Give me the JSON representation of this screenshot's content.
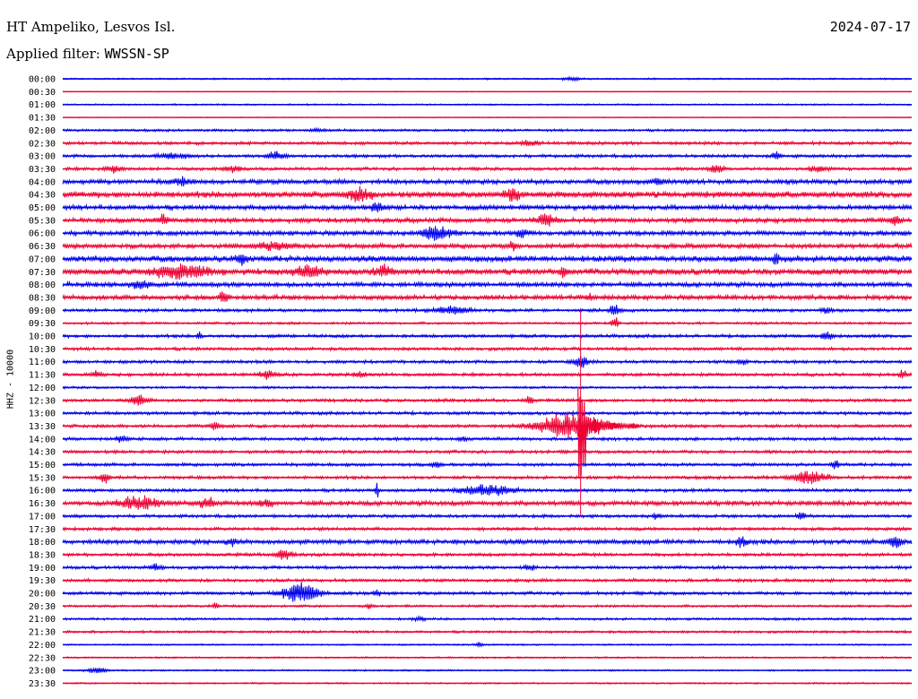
{
  "header": {
    "station": "HT Ampeliko, Lesvos Isl.",
    "date": "2024-07-17",
    "filter_label": "Applied filter:",
    "filter_value": "WWSSN-SP"
  },
  "chart_data": {
    "type": "line",
    "title": "HT Ampeliko, Lesvos Isl.",
    "ylabel": "HHZ - 10000",
    "row_labels": [
      "00:00",
      "00:30",
      "01:00",
      "01:30",
      "02:00",
      "02:30",
      "03:00",
      "03:30",
      "04:00",
      "04:30",
      "05:00",
      "05:30",
      "06:00",
      "06:30",
      "07:00",
      "07:30",
      "08:00",
      "08:30",
      "09:00",
      "09:30",
      "10:00",
      "10:30",
      "11:00",
      "11:30",
      "12:00",
      "12:30",
      "13:00",
      "13:30",
      "14:00",
      "14:30",
      "15:00",
      "15:30",
      "16:00",
      "16:30",
      "17:00",
      "17:30",
      "18:00",
      "18:30",
      "19:00",
      "19:30",
      "20:00",
      "20:30",
      "21:00",
      "21:30",
      "22:00",
      "22:30",
      "23:00",
      "23:30"
    ],
    "row_colors": [
      "#0000ee",
      "#ee0033"
    ],
    "noise_level": [
      1,
      0.5,
      1,
      0.5,
      1.5,
      2,
      2,
      2,
      3,
      4,
      3,
      3,
      3,
      3,
      4,
      4,
      3,
      3,
      2,
      1.5,
      2,
      2,
      2,
      2,
      1.5,
      2,
      2,
      2,
      2,
      2,
      2,
      2,
      2,
      3,
      2,
      2,
      3,
      2,
      2,
      2,
      2,
      1.5,
      1.5,
      1.5,
      1,
      1,
      1,
      1
    ],
    "bursts": [
      {
        "row": 0,
        "t": 0.6,
        "amp": 2,
        "width": 0.01
      },
      {
        "row": 4,
        "t": 0.3,
        "amp": 2,
        "width": 0.01
      },
      {
        "row": 5,
        "t": 0.55,
        "amp": 3,
        "width": 0.01
      },
      {
        "row": 6,
        "t": 0.13,
        "amp": 3,
        "width": 0.02
      },
      {
        "row": 6,
        "t": 0.25,
        "amp": 5,
        "width": 0.01
      },
      {
        "row": 6,
        "t": 0.84,
        "amp": 5,
        "width": 0.005
      },
      {
        "row": 7,
        "t": 0.06,
        "amp": 4,
        "width": 0.01
      },
      {
        "row": 7,
        "t": 0.2,
        "amp": 4,
        "width": 0.01
      },
      {
        "row": 7,
        "t": 0.77,
        "amp": 6,
        "width": 0.008
      },
      {
        "row": 7,
        "t": 0.89,
        "amp": 4,
        "width": 0.01
      },
      {
        "row": 8,
        "t": 0.14,
        "amp": 5,
        "width": 0.01
      },
      {
        "row": 8,
        "t": 0.7,
        "amp": 4,
        "width": 0.01
      },
      {
        "row": 9,
        "t": 0.35,
        "amp": 7,
        "width": 0.015
      },
      {
        "row": 9,
        "t": 0.53,
        "amp": 7,
        "width": 0.008
      },
      {
        "row": 10,
        "t": 0.37,
        "amp": 8,
        "width": 0.006
      },
      {
        "row": 11,
        "t": 0.12,
        "amp": 8,
        "width": 0.005
      },
      {
        "row": 11,
        "t": 0.57,
        "amp": 7,
        "width": 0.012
      },
      {
        "row": 11,
        "t": 0.98,
        "amp": 6,
        "width": 0.006
      },
      {
        "row": 12,
        "t": 0.44,
        "amp": 10,
        "width": 0.015
      },
      {
        "row": 12,
        "t": 0.54,
        "amp": 7,
        "width": 0.005
      },
      {
        "row": 13,
        "t": 0.25,
        "amp": 5,
        "width": 0.02
      },
      {
        "row": 13,
        "t": 0.53,
        "amp": 5,
        "width": 0.005
      },
      {
        "row": 14,
        "t": 0.21,
        "amp": 8,
        "width": 0.005
      },
      {
        "row": 14,
        "t": 0.84,
        "amp": 10,
        "width": 0.003
      },
      {
        "row": 15,
        "t": 0.14,
        "amp": 8,
        "width": 0.03
      },
      {
        "row": 15,
        "t": 0.29,
        "amp": 7,
        "width": 0.015
      },
      {
        "row": 15,
        "t": 0.38,
        "amp": 7,
        "width": 0.01
      },
      {
        "row": 15,
        "t": 0.59,
        "amp": 9,
        "width": 0.004
      },
      {
        "row": 16,
        "t": 0.09,
        "amp": 6,
        "width": 0.01
      },
      {
        "row": 17,
        "t": 0.19,
        "amp": 9,
        "width": 0.005
      },
      {
        "row": 17,
        "t": 0.62,
        "amp": 5,
        "width": 0.004
      },
      {
        "row": 18,
        "t": 0.46,
        "amp": 5,
        "width": 0.02
      },
      {
        "row": 18,
        "t": 0.65,
        "amp": 8,
        "width": 0.006
      },
      {
        "row": 18,
        "t": 0.9,
        "amp": 4,
        "width": 0.005
      },
      {
        "row": 19,
        "t": 0.65,
        "amp": 8,
        "width": 0.004
      },
      {
        "row": 20,
        "t": 0.16,
        "amp": 8,
        "width": 0.002
      },
      {
        "row": 20,
        "t": 0.9,
        "amp": 6,
        "width": 0.006
      },
      {
        "row": 22,
        "t": 0.61,
        "amp": 7,
        "width": 0.01
      },
      {
        "row": 22,
        "t": 0.8,
        "amp": 4,
        "width": 0.005
      },
      {
        "row": 23,
        "t": 0.04,
        "amp": 5,
        "width": 0.006
      },
      {
        "row": 23,
        "t": 0.24,
        "amp": 5,
        "width": 0.01
      },
      {
        "row": 23,
        "t": 0.35,
        "amp": 4,
        "width": 0.006
      },
      {
        "row": 23,
        "t": 0.99,
        "amp": 6,
        "width": 0.004
      },
      {
        "row": 25,
        "t": 0.09,
        "amp": 7,
        "width": 0.01
      },
      {
        "row": 25,
        "t": 0.55,
        "amp": 5,
        "width": 0.004
      },
      {
        "row": 27,
        "t": 0.18,
        "amp": 6,
        "width": 0.005
      },
      {
        "row": 27,
        "t": 0.6,
        "amp": 18,
        "width": 0.04
      },
      {
        "row": 28,
        "t": 0.07,
        "amp": 4,
        "width": 0.008
      },
      {
        "row": 28,
        "t": 0.47,
        "amp": 3,
        "width": 0.006
      },
      {
        "row": 30,
        "t": 0.44,
        "amp": 4,
        "width": 0.005
      },
      {
        "row": 30,
        "t": 0.91,
        "amp": 6,
        "width": 0.004
      },
      {
        "row": 31,
        "t": 0.05,
        "amp": 7,
        "width": 0.005
      },
      {
        "row": 31,
        "t": 0.88,
        "amp": 8,
        "width": 0.02
      },
      {
        "row": 32,
        "t": 0.5,
        "amp": 7,
        "width": 0.03
      },
      {
        "row": 32,
        "t": 0.37,
        "amp": 10,
        "width": 0.002
      },
      {
        "row": 33,
        "t": 0.09,
        "amp": 10,
        "width": 0.02
      },
      {
        "row": 33,
        "t": 0.17,
        "amp": 8,
        "width": 0.008
      },
      {
        "row": 33,
        "t": 0.24,
        "amp": 5,
        "width": 0.008
      },
      {
        "row": 34,
        "t": 0.7,
        "amp": 5,
        "width": 0.005
      },
      {
        "row": 34,
        "t": 0.87,
        "amp": 5,
        "width": 0.005
      },
      {
        "row": 36,
        "t": 0.2,
        "amp": 5,
        "width": 0.005
      },
      {
        "row": 36,
        "t": 0.8,
        "amp": 7,
        "width": 0.006
      },
      {
        "row": 36,
        "t": 0.98,
        "amp": 9,
        "width": 0.008
      },
      {
        "row": 37,
        "t": 0.26,
        "amp": 8,
        "width": 0.008
      },
      {
        "row": 38,
        "t": 0.11,
        "amp": 4,
        "width": 0.008
      },
      {
        "row": 38,
        "t": 0.55,
        "amp": 4,
        "width": 0.006
      },
      {
        "row": 40,
        "t": 0.28,
        "amp": 14,
        "width": 0.02
      },
      {
        "row": 40,
        "t": 0.37,
        "amp": 4,
        "width": 0.004
      },
      {
        "row": 41,
        "t": 0.18,
        "amp": 5,
        "width": 0.003
      },
      {
        "row": 41,
        "t": 0.36,
        "amp": 4,
        "width": 0.003
      },
      {
        "row": 42,
        "t": 0.42,
        "amp": 3,
        "width": 0.006
      },
      {
        "row": 44,
        "t": 0.49,
        "amp": 3,
        "width": 0.005
      },
      {
        "row": 46,
        "t": 0.04,
        "amp": 5,
        "width": 0.01
      }
    ],
    "main_event": {
      "row": 27,
      "t": 0.61,
      "start_row": 18,
      "end_row": 34
    }
  }
}
